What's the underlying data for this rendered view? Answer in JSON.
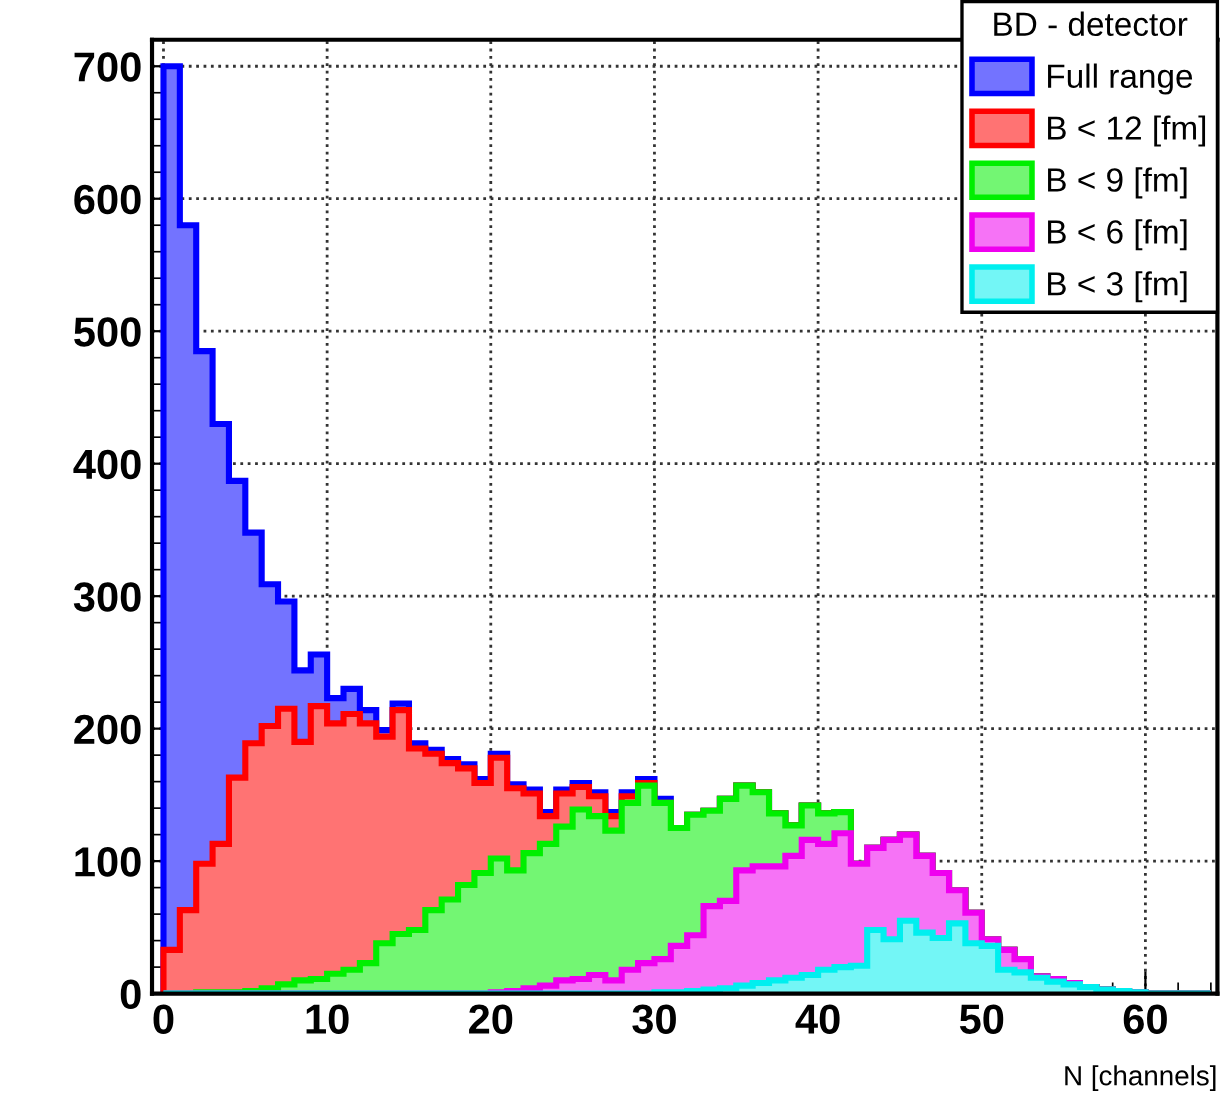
{
  "chart_data": {
    "type": "histogram",
    "xlabel": "N [channels]",
    "legend_title": "BD - detector",
    "legend": "top right",
    "grid": true,
    "bins": [
      0,
      1,
      2,
      3,
      4,
      5,
      6,
      7,
      8,
      9,
      10,
      11,
      12,
      13,
      14,
      15,
      16,
      17,
      18,
      19,
      20,
      21,
      22,
      23,
      24,
      25,
      26,
      27,
      28,
      29,
      30,
      31,
      32,
      33,
      34,
      35,
      36,
      37,
      38,
      39,
      40,
      41,
      42,
      43,
      44,
      45,
      46,
      47,
      48,
      49,
      50,
      51,
      52,
      53,
      54,
      55,
      56,
      57,
      58,
      59,
      60,
      61,
      62,
      63,
      64
    ],
    "xlim": [
      -0.7,
      64.4
    ],
    "xticks": [
      0,
      10,
      20,
      30,
      40,
      50,
      60
    ],
    "ylim": [
      0,
      720
    ],
    "yticks": [
      0,
      100,
      200,
      300,
      400,
      500,
      600,
      700
    ],
    "series": [
      {
        "name": "Full range",
        "color": "#7373ff",
        "values": [
          700,
          580,
          485,
          430,
          387,
          348,
          309,
          296,
          244,
          256,
          223,
          230,
          214,
          199,
          219,
          189,
          184,
          177,
          173,
          162,
          181,
          158,
          154,
          137,
          154,
          159,
          152,
          137,
          152,
          162,
          147,
          125,
          135,
          138,
          147,
          157,
          152,
          136,
          127,
          142,
          136,
          137,
          98,
          110,
          116,
          120,
          104,
          91,
          78,
          61,
          41,
          33,
          26,
          13,
          11,
          8,
          5,
          3,
          2,
          1,
          0,
          0,
          0,
          0
        ]
      },
      {
        "name": "B < 12 [fm]",
        "color": "#ff7373",
        "values": [
          33,
          63,
          98,
          113,
          163,
          189,
          202,
          215,
          190,
          217,
          204,
          211,
          204,
          194,
          214,
          185,
          181,
          174,
          170,
          159,
          178,
          155,
          151,
          134,
          151,
          156,
          149,
          134,
          149,
          159,
          144,
          125,
          135,
          138,
          147,
          157,
          152,
          136,
          127,
          142,
          136,
          137,
          98,
          110,
          116,
          120,
          104,
          91,
          78,
          61,
          41,
          33,
          26,
          13,
          11,
          8,
          5,
          3,
          2,
          1,
          0,
          0,
          0,
          0
        ]
      },
      {
        "name": "B < 9 [fm]",
        "color": "#73f673",
        "values": [
          0,
          0,
          1,
          1,
          1,
          2,
          4,
          7,
          10,
          11,
          15,
          18,
          23,
          38,
          45,
          48,
          63,
          71,
          82,
          91,
          102,
          93,
          106,
          113,
          126,
          139,
          134,
          123,
          144,
          157,
          144,
          125,
          135,
          138,
          147,
          157,
          152,
          136,
          127,
          142,
          136,
          137,
          98,
          110,
          116,
          120,
          104,
          91,
          78,
          61,
          41,
          33,
          26,
          13,
          11,
          8,
          5,
          3,
          2,
          1,
          0,
          0,
          0,
          0
        ]
      },
      {
        "name": "B < 6 [fm]",
        "color": "#f673f6",
        "values": [
          0,
          0,
          0,
          0,
          0,
          0,
          0,
          0,
          0,
          0,
          0,
          0,
          0,
          0,
          0,
          0,
          0,
          0,
          0,
          0,
          1,
          2,
          4,
          6,
          10,
          11,
          14,
          10,
          18,
          23,
          26,
          36,
          44,
          66,
          70,
          93,
          96,
          96,
          104,
          116,
          113,
          121,
          98,
          110,
          116,
          120,
          104,
          91,
          78,
          61,
          41,
          33,
          26,
          13,
          11,
          8,
          5,
          3,
          2,
          1,
          0,
          0,
          0,
          0
        ]
      },
      {
        "name": "B < 3 [fm]",
        "color": "#73f6f6",
        "values": [
          0,
          0,
          0,
          0,
          0,
          0,
          0,
          0,
          0,
          0,
          0,
          0,
          0,
          0,
          0,
          0,
          0,
          0,
          0,
          0,
          0,
          0,
          0,
          0,
          0,
          0,
          0,
          0,
          0,
          0,
          1,
          1,
          2,
          3,
          4,
          6,
          8,
          10,
          12,
          14,
          18,
          20,
          21,
          48,
          41,
          55,
          46,
          42,
          53,
          38,
          36,
          18,
          16,
          12,
          9,
          7,
          5,
          3,
          2,
          1,
          0,
          0,
          0,
          0
        ]
      }
    ]
  }
}
